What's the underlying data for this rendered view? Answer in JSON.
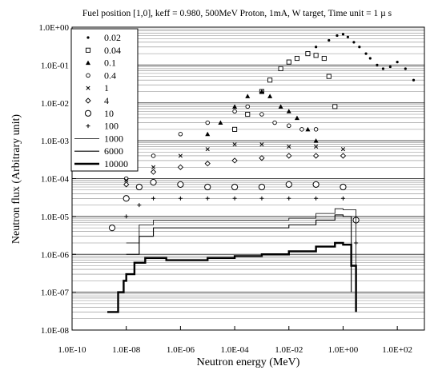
{
  "chart_data": {
    "type": "scatter",
    "title": "Fuel position [1,0], keff = 0.980, 500MeV Proton, 1mA, W target, Time unit = 1 µ s",
    "xlabel": "Neutron energy (MeV)",
    "ylabel": "Neutron flux (Arbitrary unit)",
    "x_scale": "log",
    "y_scale": "log",
    "xlim": [
      1e-10,
      1000
    ],
    "ylim": [
      1e-08,
      1
    ],
    "grid": "horizontal",
    "legend_position": "top-left",
    "x_ticks": [
      {
        "value": 1e-10,
        "label": "1.0E-10"
      },
      {
        "value": 1e-08,
        "label": "1.0E-08"
      },
      {
        "value": 1e-06,
        "label": "1.0E-06"
      },
      {
        "value": 0.0001,
        "label": "1.0E-04"
      },
      {
        "value": 0.01,
        "label": "1.0E-02"
      },
      {
        "value": 1,
        "label": "1.0E+00"
      },
      {
        "value": 100,
        "label": "1.0E+02"
      }
    ],
    "y_ticks": [
      {
        "value": 1,
        "label": "1.0E+00"
      },
      {
        "value": 0.1,
        "label": "1.0E-01"
      },
      {
        "value": 0.01,
        "label": "1.0E-02"
      },
      {
        "value": 0.001,
        "label": "1.0E-03"
      },
      {
        "value": 0.0001,
        "label": "1.0E-04"
      },
      {
        "value": 1e-05,
        "label": "1.0E-05"
      },
      {
        "value": 1e-06,
        "label": "1.0E-06"
      },
      {
        "value": 1e-07,
        "label": "1.0E-07"
      },
      {
        "value": 1e-08,
        "label": "1.0E-08"
      }
    ],
    "series": [
      {
        "name": "0.02",
        "marker": "dot",
        "x": [
          0.1,
          0.3,
          0.6,
          1.0,
          1.5,
          2.5,
          4,
          7,
          10,
          18,
          30,
          55,
          100,
          200,
          400
        ],
        "y": [
          0.3,
          0.45,
          0.6,
          0.65,
          0.55,
          0.4,
          0.3,
          0.2,
          0.15,
          0.1,
          0.08,
          0.09,
          0.12,
          0.08,
          0.04
        ]
      },
      {
        "name": "0.04",
        "marker": "square",
        "x": [
          0.0001,
          0.0003,
          0.001,
          0.002,
          0.005,
          0.01,
          0.02,
          0.05,
          0.1,
          0.2,
          0.3,
          0.5
        ],
        "y": [
          0.002,
          0.005,
          0.02,
          0.04,
          0.08,
          0.12,
          0.15,
          0.2,
          0.18,
          0.15,
          0.05,
          0.008
        ]
      },
      {
        "name": "0.1",
        "marker": "triangle",
        "x": [
          1e-05,
          3e-05,
          0.0001,
          0.0003,
          0.001,
          0.002,
          0.005,
          0.01,
          0.02,
          0.05,
          0.1
        ],
        "y": [
          0.0015,
          0.003,
          0.008,
          0.015,
          0.02,
          0.015,
          0.008,
          0.006,
          0.004,
          0.002,
          0.001
        ]
      },
      {
        "name": "0.4",
        "marker": "small-circle",
        "x": [
          1e-08,
          1e-07,
          1e-06,
          1e-05,
          0.0001,
          0.0003,
          0.001,
          0.003,
          0.01,
          0.03,
          0.1
        ],
        "y": [
          0.0001,
          0.0004,
          0.0015,
          0.003,
          0.006,
          0.008,
          0.005,
          0.003,
          0.0025,
          0.002,
          0.002
        ]
      },
      {
        "name": "1",
        "marker": "cross",
        "x": [
          1e-08,
          1e-07,
          1e-06,
          1e-05,
          0.0001,
          0.001,
          0.01,
          0.1,
          1
        ],
        "y": [
          9e-05,
          0.0002,
          0.0004,
          0.0006,
          0.0008,
          0.0008,
          0.0007,
          0.0007,
          0.0006
        ]
      },
      {
        "name": "4",
        "marker": "diamond",
        "x": [
          1e-08,
          1e-07,
          1e-06,
          1e-05,
          0.0001,
          0.001,
          0.01,
          0.1,
          1
        ],
        "y": [
          7e-05,
          0.00015,
          0.0002,
          0.00025,
          0.0003,
          0.00035,
          0.0004,
          0.0004,
          0.0004
        ]
      },
      {
        "name": "10",
        "marker": "circle",
        "x": [
          3e-09,
          1e-08,
          3e-08,
          1e-07,
          1e-06,
          1e-05,
          0.0001,
          0.001,
          0.01,
          0.1,
          1,
          3
        ],
        "y": [
          5e-06,
          3e-05,
          6e-05,
          8e-05,
          7e-05,
          6e-05,
          6e-05,
          6e-05,
          7e-05,
          7e-05,
          6e-05,
          8e-06
        ]
      },
      {
        "name": "100",
        "marker": "plus",
        "x": [
          1e-08,
          3e-08,
          1e-07,
          1e-06,
          1e-05,
          0.0001,
          0.001,
          0.01,
          0.1,
          1,
          3
        ],
        "y": [
          1e-05,
          2e-05,
          3e-05,
          3e-05,
          3e-05,
          3e-05,
          3e-05,
          3e-05,
          3e-05,
          3e-05,
          2e-06
        ]
      },
      {
        "name": "1000",
        "marker": "thin-line",
        "x": [
          1e-08,
          3e-08,
          1e-07,
          1e-06,
          1e-05,
          0.0001,
          0.001,
          0.01,
          0.1,
          0.5,
          1,
          3
        ],
        "y": [
          2e-06,
          6e-06,
          8e-06,
          8e-06,
          8e-06,
          8e-06,
          8e-06,
          9e-06,
          1.2e-05,
          1.6e-05,
          1.5e-05,
          2e-07
        ]
      },
      {
        "name": "6000",
        "marker": "thin-line-2",
        "x": [
          1e-08,
          3e-08,
          1e-07,
          1e-06,
          1e-05,
          0.0001,
          0.001,
          0.01,
          0.1,
          0.5,
          1,
          2
        ],
        "y": [
          1e-06,
          3e-06,
          5e-06,
          5e-06,
          5e-06,
          5e-06,
          5e-06,
          6e-06,
          8e-06,
          1.1e-05,
          1e-05,
          1e-07
        ]
      },
      {
        "name": "10000",
        "marker": "thick-line",
        "x": [
          2e-09,
          5e-09,
          8e-09,
          1e-08,
          2e-08,
          5e-08,
          1e-07,
          3e-07,
          1e-06,
          1e-05,
          0.0001,
          0.001,
          0.01,
          0.1,
          0.5,
          1,
          2,
          3
        ],
        "y": [
          3e-08,
          1e-07,
          2e-07,
          3e-07,
          6e-07,
          8e-07,
          8e-07,
          7e-07,
          7e-07,
          8e-07,
          9e-07,
          1e-06,
          1.2e-06,
          1.6e-06,
          2e-06,
          1.8e-06,
          5e-07,
          3e-08
        ]
      }
    ]
  }
}
